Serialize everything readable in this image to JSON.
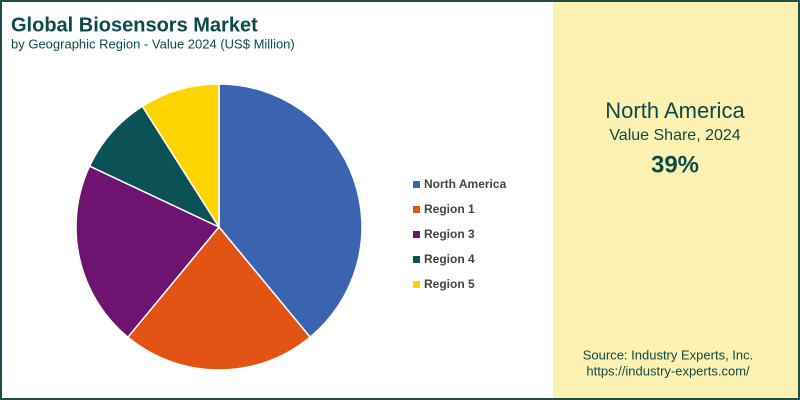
{
  "chart_data": {
    "type": "pie",
    "title": "Global Biosensors Market",
    "subtitle": "by Geographic Region - Value 2024 (US$ Million)",
    "categories": [
      "North America",
      "Region 1",
      "Region 3",
      "Region 4",
      "Region 5"
    ],
    "values": [
      39,
      22,
      21,
      9,
      9
    ],
    "colors": [
      "#3a64b0",
      "#e35414",
      "#6c1470",
      "#0b5156",
      "#fcd400"
    ],
    "legend": "right"
  },
  "highlight": {
    "name": "North America",
    "label": "Value Share, 2024",
    "value": "39%"
  },
  "source": {
    "text": "Source: Industry Experts, Inc.",
    "url": "https://industry-experts.com/"
  }
}
